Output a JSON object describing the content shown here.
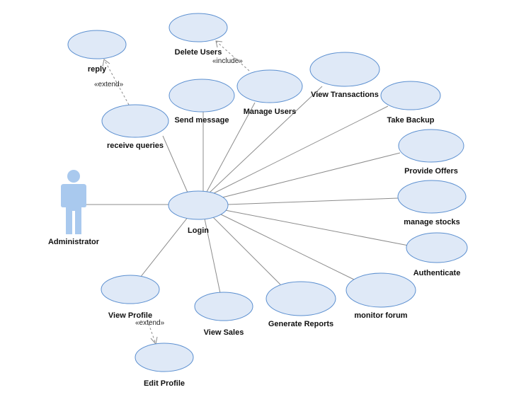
{
  "actor": {
    "name": "Administrator"
  },
  "use_cases": {
    "login": "Login",
    "delete_users": "Delete Users",
    "reply": "reply",
    "receive_queries": "receive queries",
    "send_message": "Send message",
    "manage_users": "Manage Users",
    "view_transactions": "View Transactions",
    "take_backup": "Take Backup",
    "provide_offers": "Provide Offers",
    "manage_stocks": "manage stocks",
    "authenticate": "Authenticate",
    "monitor_forum": "monitor forum",
    "generate_reports": "Generate Reports",
    "view_sales": "View Sales",
    "view_profile": "View Profile",
    "edit_profile": "Edit Profile"
  },
  "relationships": {
    "include": "«include»",
    "extend_reply": "«extend»",
    "extend_profile": "«extend»"
  },
  "colors": {
    "use_case_fill": "#dfe9f7",
    "use_case_stroke": "#5b8fd0",
    "actor_fill": "#a9c9ee",
    "line": "#8c8c8c"
  }
}
